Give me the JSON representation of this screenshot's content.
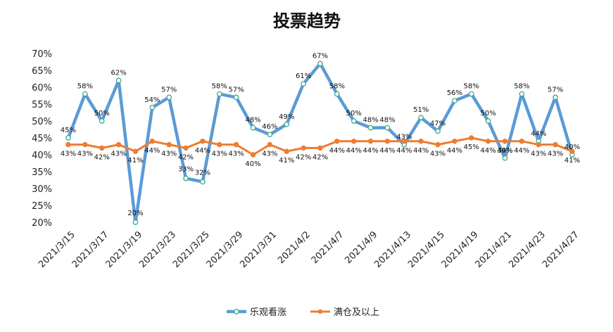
{
  "chart_data": {
    "type": "line",
    "title": "投票趋势",
    "xlabel": "",
    "ylabel": "",
    "ylim": [
      20,
      70
    ],
    "y_ticks": [
      "20%",
      "25%",
      "30%",
      "35%",
      "40%",
      "45%",
      "50%",
      "55%",
      "60%",
      "65%",
      "70%"
    ],
    "y_tick_values": [
      20,
      25,
      30,
      35,
      40,
      45,
      50,
      55,
      60,
      65,
      70
    ],
    "x_tick_labels": [
      "2021/3/15",
      "2021/3/17",
      "2021/3/19",
      "2021/3/23",
      "2021/3/25",
      "2021/3/29",
      "2021/3/31",
      "2021/4/2",
      "2021/4/7",
      "2021/4/9",
      "2021/4/13",
      "2021/4/15",
      "2021/4/19",
      "2021/4/21",
      "2021/4/23",
      "2021/4/27"
    ],
    "grid": false,
    "legend": "bottom",
    "series": [
      {
        "name": "乐观看涨",
        "color": "#5B9BD5",
        "values": [
          45,
          58,
          50,
          62,
          20,
          54,
          57,
          33,
          32,
          58,
          57,
          48,
          46,
          49,
          61,
          67,
          58,
          50,
          48,
          48,
          43,
          51,
          47,
          56,
          58,
          50,
          39,
          58,
          44,
          57,
          40
        ],
        "labels": [
          "45%",
          "58%",
          "50%",
          "62%",
          "20%",
          "54%",
          "57%",
          "33%",
          "32%",
          "58%",
          "57%",
          "48%",
          "46%",
          "49%",
          "61%",
          "67%",
          "58%",
          "50%",
          "48%",
          "48%",
          "43%",
          "51%",
          "47%",
          "56%",
          "58%",
          "50%",
          "39%",
          "58%",
          "44%",
          "57%",
          "40%"
        ]
      },
      {
        "name": "满仓及以上",
        "color": "#ED7D31",
        "values": [
          43,
          43,
          42,
          43,
          41,
          44,
          43,
          42,
          44,
          43,
          43,
          40,
          43,
          41,
          42,
          42,
          44,
          44,
          44,
          44,
          44,
          44,
          43,
          44,
          45,
          44,
          44,
          44,
          43,
          43,
          41
        ],
        "labels": [
          "43%",
          "43%",
          "42%",
          "43%",
          "41%",
          "44%",
          "43%",
          "42%",
          "44%",
          "43%",
          "43%",
          "40%",
          "43%",
          "41%",
          "42%",
          "42%",
          "44%",
          "44%",
          "44%",
          "44%",
          "44%",
          "44%",
          "43%",
          "44%",
          "45%",
          "44%",
          "44%",
          "44%",
          "43%",
          "43%",
          "41%"
        ]
      }
    ]
  }
}
